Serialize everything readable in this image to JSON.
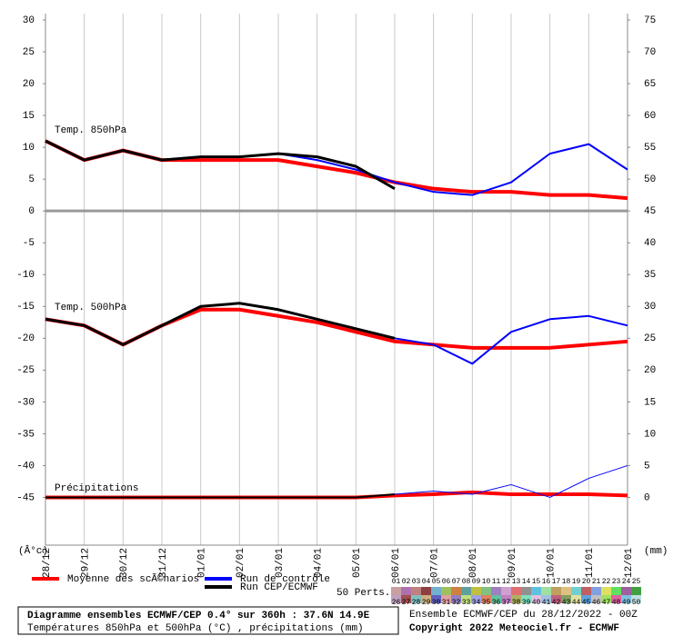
{
  "chart_data": {
    "type": "line",
    "categories": [
      "28/12",
      "29/12",
      "30/12",
      "31/12",
      "01/01",
      "02/01",
      "03/01",
      "04/01",
      "05/01",
      "06/01",
      "07/01",
      "08/01",
      "09/01",
      "10/01",
      "11/01",
      "12/01"
    ],
    "ylim": [
      -52.5,
      31
    ],
    "yticks": [
      30,
      25,
      20,
      15,
      10,
      5,
      0,
      -5,
      -10,
      -15,
      -20,
      -25,
      -30,
      -35,
      -40,
      -45
    ],
    "y2lim": [
      -7.5,
      76
    ],
    "y2ticks": [
      75,
      70,
      65,
      60,
      55,
      50,
      45,
      40,
      35,
      30,
      25,
      20,
      15,
      10,
      5,
      0
    ],
    "ylabel": "(Â°c)",
    "y2label": "(mm)",
    "zero_line": true,
    "grid_x": true,
    "annotations": [
      "Temp. 850hPa",
      "Temp. 500hPa",
      "Précipitations"
    ],
    "series": [
      {
        "name": "Moyenne des scÃ©narios",
        "color": "#ff0000",
        "line_width": 4,
        "values": [
          11,
          8,
          9.5,
          8,
          8,
          8,
          8,
          7,
          6,
          4.5,
          3.5,
          3,
          3,
          2.5,
          2.5,
          2
        ]
      },
      {
        "name": "Run de contrôle",
        "color": "#0000ff",
        "line_width": 2,
        "values": [
          11,
          8,
          9.5,
          8,
          8.5,
          8.5,
          9,
          8,
          6.5,
          4.5,
          3,
          2.5,
          4.5,
          9,
          10.5,
          6.5
        ]
      },
      {
        "name": "Run CEP/ECMWF",
        "color": "#000000",
        "line_width": 3,
        "values": [
          11,
          8,
          9.5,
          8,
          8.5,
          8.5,
          9,
          8.5,
          7,
          3.5,
          null,
          null,
          null,
          null,
          null,
          null
        ]
      },
      {
        "name": "Moyenne des scÃ©narios",
        "color": "#ff0000",
        "line_width": 4,
        "values": [
          -17,
          -18,
          -21,
          -18,
          -15.5,
          -15.5,
          -16.5,
          -17.5,
          -19,
          -20.5,
          -21,
          -21.5,
          -21.5,
          -21.5,
          -21,
          -20.5
        ]
      },
      {
        "name": "Run de contrôle",
        "color": "#0000ff",
        "line_width": 2,
        "values": [
          -17,
          -18,
          -21,
          -18,
          -15,
          -14.5,
          -15.5,
          -17,
          -18.5,
          -20,
          -21,
          -24,
          -19,
          -17,
          -16.5,
          -18
        ]
      },
      {
        "name": "Run CEP/ECMWF",
        "color": "#000000",
        "line_width": 3,
        "values": [
          -17,
          -18,
          -21,
          -18,
          -15,
          -14.5,
          -15.5,
          -17,
          -18.5,
          -20,
          null,
          null,
          null,
          null,
          null,
          null
        ]
      },
      {
        "name": "Moyenne des scÃ©narios",
        "color": "#ff0000",
        "line_width": 4,
        "axis": "y2",
        "values": [
          0,
          0,
          0,
          0,
          0,
          0,
          0,
          0,
          0,
          0.3,
          0.5,
          0.8,
          0.5,
          0.5,
          0.5,
          0.3
        ]
      },
      {
        "name": "Run de contrôle",
        "color": "#0000ff",
        "line_width": 1,
        "axis": "y2",
        "values": [
          0,
          0,
          0,
          0,
          0,
          0,
          0,
          0,
          0,
          0.5,
          1,
          0.5,
          2,
          0,
          3,
          5
        ]
      },
      {
        "name": "Run CEP/ECMWF",
        "color": "#000000",
        "line_width": 2,
        "axis": "y2",
        "values": [
          0,
          0,
          0,
          0,
          0,
          0,
          0,
          0,
          0,
          0.5,
          null,
          null,
          null,
          null,
          null,
          null
        ]
      }
    ],
    "perturbations": {
      "count_label": "50 Perts.",
      "labels": [
        "01",
        "02",
        "03",
        "04",
        "05",
        "06",
        "07",
        "08",
        "09",
        "10",
        "11",
        "12",
        "13",
        "14",
        "15",
        "16",
        "17",
        "18",
        "19",
        "20",
        "21",
        "22",
        "23",
        "24",
        "25",
        "26",
        "27",
        "28",
        "29",
        "30",
        "31",
        "32",
        "33",
        "34",
        "35",
        "36",
        "37",
        "38",
        "39",
        "40",
        "41",
        "42",
        "43",
        "44",
        "45",
        "46",
        "47",
        "48",
        "49",
        "50"
      ],
      "colors": [
        "#c8a0a0",
        "#b070b0",
        "#c08080",
        "#8c4040",
        "#70b0d0",
        "#a0c060",
        "#d08040",
        "#60a0a0",
        "#c0c040",
        "#80c080",
        "#a080c0",
        "#d0a0d0",
        "#e07070",
        "#909090",
        "#60c0e0",
        "#a0e0a0",
        "#c0a060",
        "#e0c080",
        "#70d0d0",
        "#c06060",
        "#80a0e0",
        "#e0e060",
        "#60e060",
        "#a060a0",
        "#40a040",
        "#c0a0c0",
        "#a05050",
        "#80c0c0",
        "#d0b080",
        "#6060c0",
        "#e0a0a0",
        "#9080c0",
        "#c0e080",
        "#a0a0e0",
        "#e08060",
        "#60c0a0",
        "#c080c0",
        "#b0b060",
        "#80e0c0",
        "#e0c0e0",
        "#a0c0e0",
        "#c06080",
        "#80a060",
        "#e0e0a0",
        "#60a0e0",
        "#c0c0c0",
        "#a0e060",
        "#e060a0",
        "#80c0e0",
        "#c0e0e0"
      ]
    }
  },
  "footer": {
    "title": "Diagramme ensembles ECMWF/CEP 0.4° sur 360h : 37.6N 14.9E",
    "subtitle": "Températures 850hPa et 500hPa (°C) , précipitations (mm)",
    "run": "Ensemble ECMWF/CEP du 28/12/2022 - 00Z",
    "copyright": "Copyright 2022 Meteociel.fr - ECMWF"
  }
}
